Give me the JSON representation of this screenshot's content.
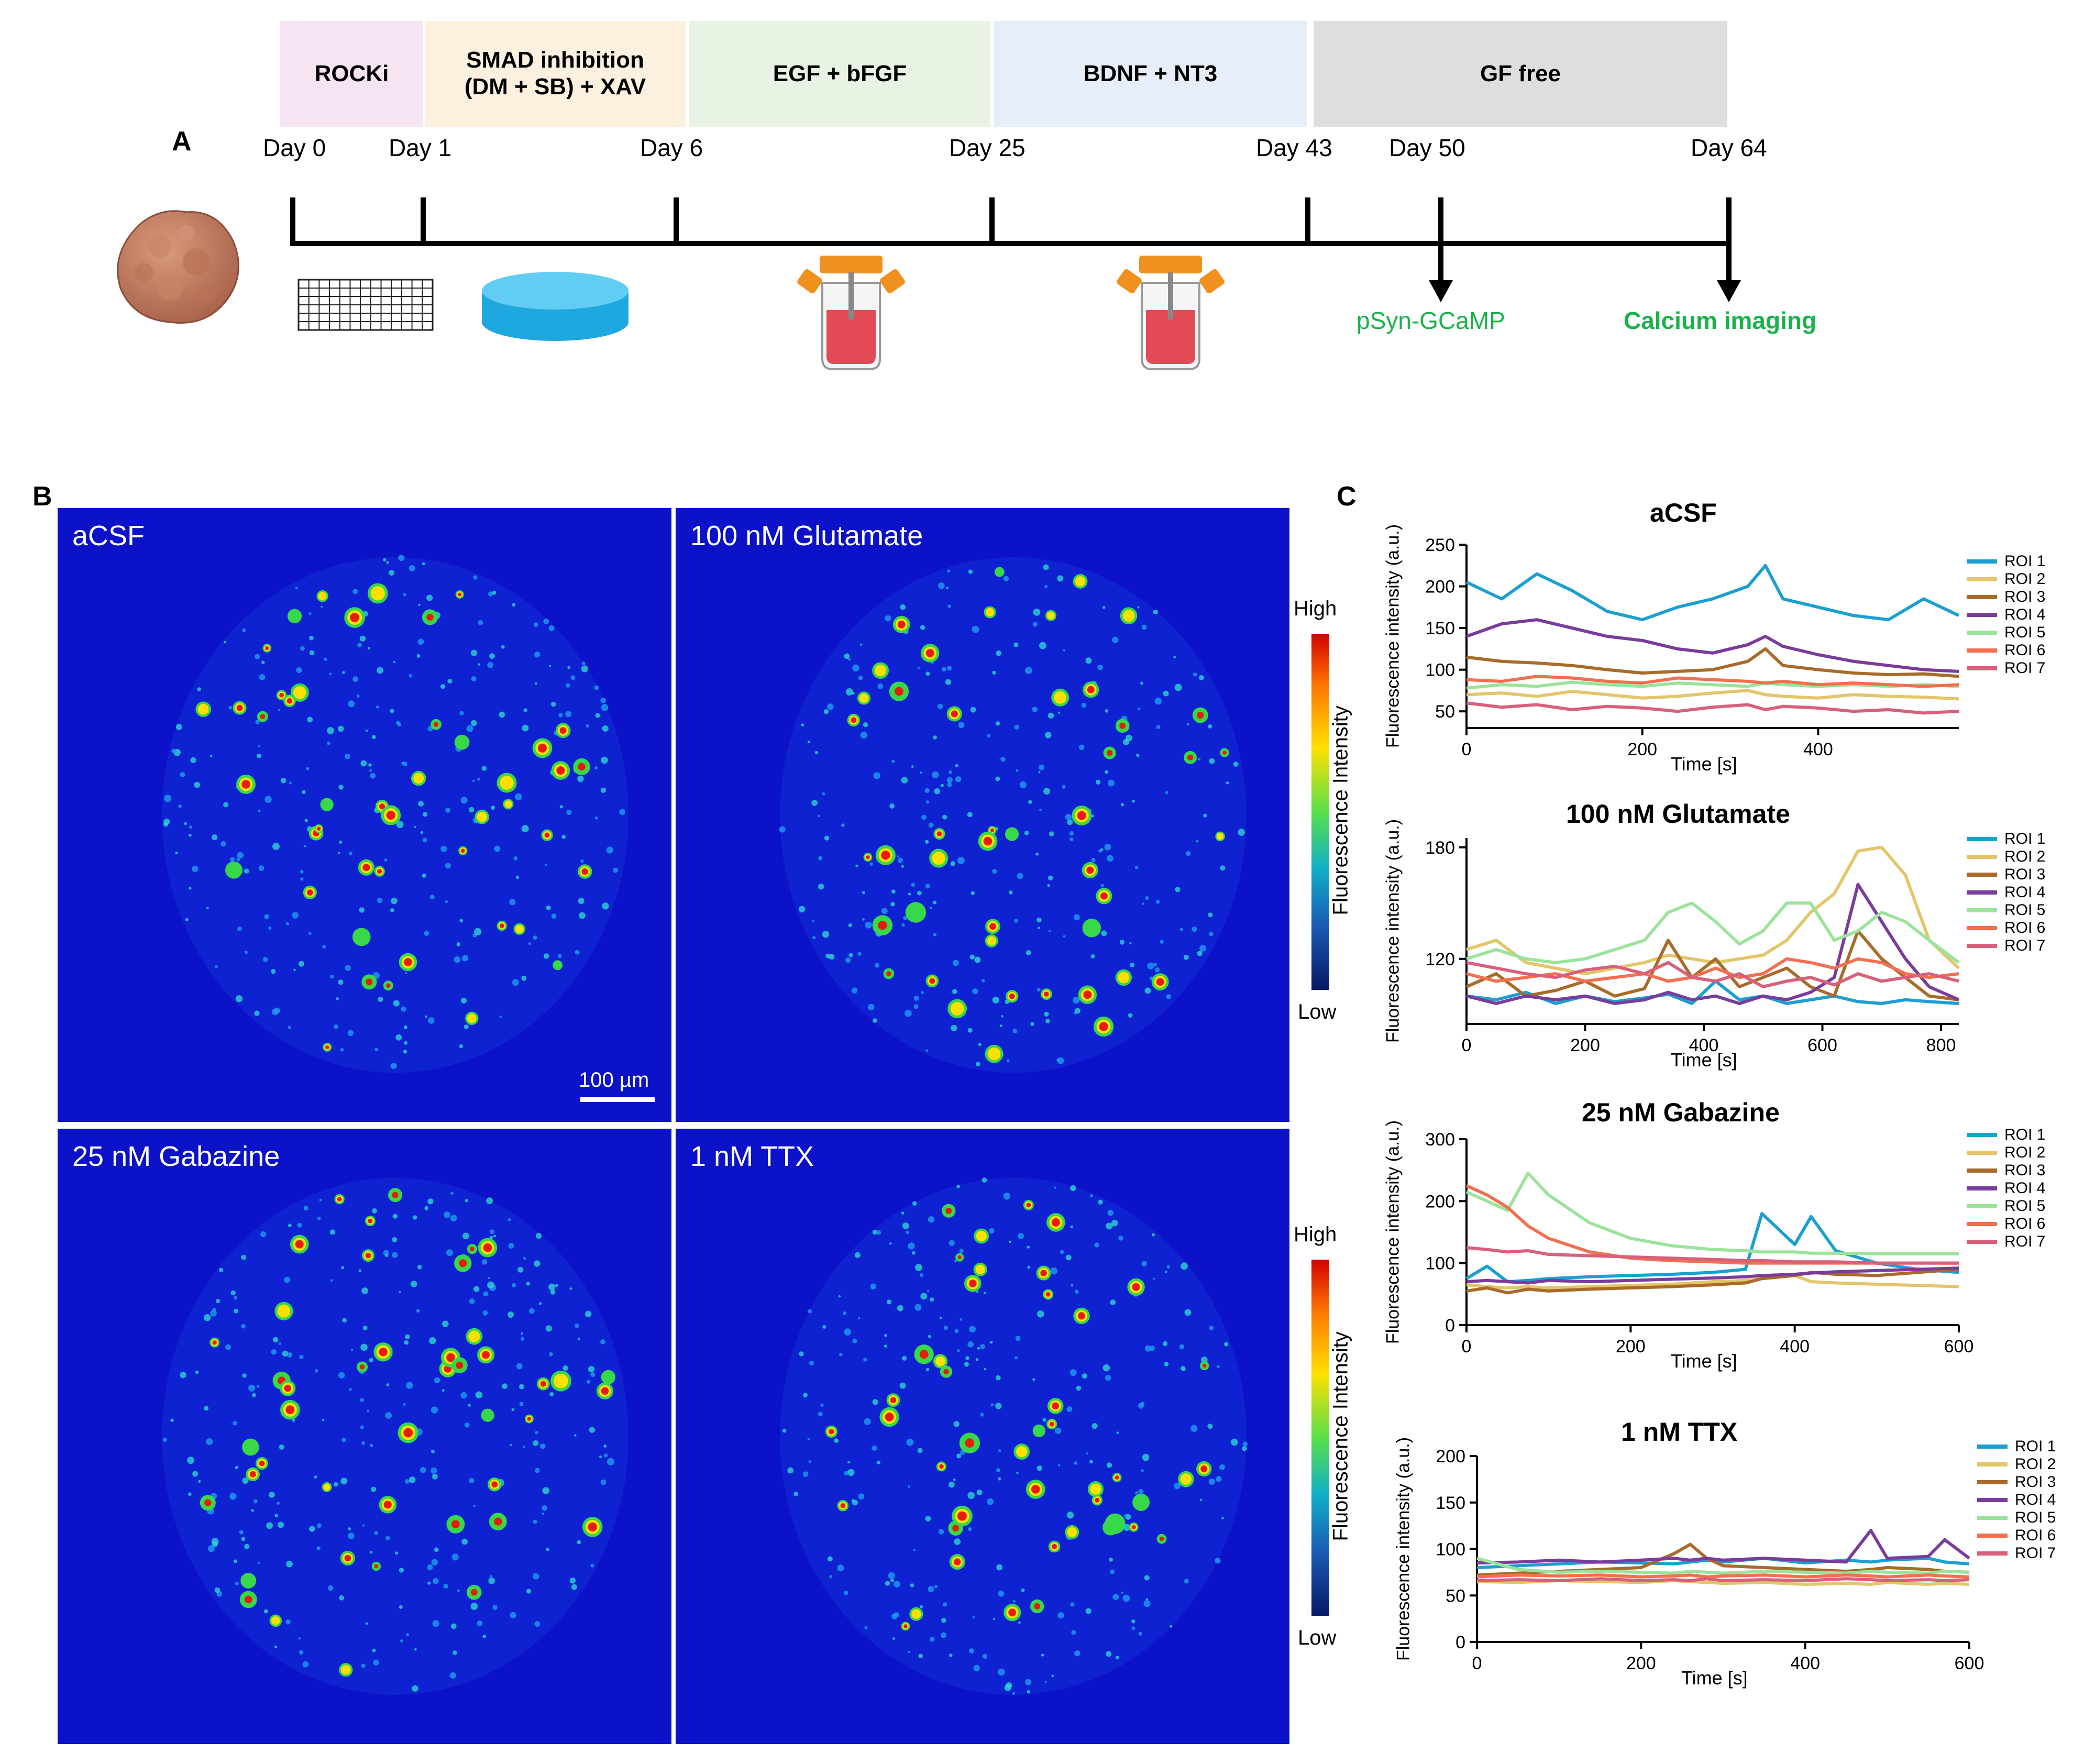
{
  "panels": {
    "a": "A",
    "b": "B",
    "c": "C"
  },
  "timeline": {
    "stages": [
      {
        "label": "ROCKi",
        "color": "#f7e4f3"
      },
      {
        "label": "SMAD inhibition\n(DM + SB) + XAV",
        "color": "#fbf1de"
      },
      {
        "label": "EGF + bFGF",
        "color": "#e9f3e4"
      },
      {
        "label": "BDNF + NT3",
        "color": "#e6eef9"
      },
      {
        "label": "GF free",
        "color": "#dedede"
      }
    ],
    "days": [
      "Day 0",
      "Day 1",
      "Day 6",
      "Day 25",
      "Day 43",
      "Day 50",
      "Day 64"
    ],
    "event_1": "pSyn-GCaMP",
    "event_2": "Calcium imaging",
    "event_color": "#1ab24b"
  },
  "microscopy": {
    "conditions": [
      "aCSF",
      "100 nM Glutamate",
      "25 nM Gabazine",
      "1 nM TTX"
    ],
    "scale_bar": "100 µm",
    "colorbar": {
      "high": "High",
      "low": "Low",
      "title": "Fluorescence Intensity"
    }
  },
  "series_colors": {
    "ROI 1": "#1b9fd0",
    "ROI 2": "#e3c56a",
    "ROI 3": "#a86b2a",
    "ROI 4": "#7a3c9c",
    "ROI 5": "#9be39b",
    "ROI 6": "#f36f4f",
    "ROI 7": "#d9607a"
  },
  "chart_data": [
    {
      "type": "line",
      "title": "aCSF",
      "xlabel": "Time [s]",
      "ylabel": "Fluorescence intensity (a.u.)",
      "xlim": [
        0,
        560
      ],
      "ylim": [
        30,
        250
      ],
      "xticks": [
        0,
        200,
        400
      ],
      "yticks": [
        50,
        100,
        150,
        200,
        250
      ],
      "x": [
        0,
        40,
        80,
        120,
        160,
        200,
        240,
        280,
        320,
        340,
        360,
        400,
        440,
        480,
        520,
        560
      ],
      "series": [
        {
          "name": "ROI 1",
          "values": [
            205,
            185,
            215,
            195,
            170,
            160,
            175,
            185,
            200,
            225,
            185,
            175,
            165,
            160,
            185,
            165
          ]
        },
        {
          "name": "ROI 2",
          "values": [
            70,
            72,
            68,
            74,
            70,
            66,
            68,
            72,
            75,
            70,
            68,
            66,
            70,
            68,
            67,
            65
          ]
        },
        {
          "name": "ROI 3",
          "values": [
            115,
            110,
            108,
            105,
            100,
            96,
            98,
            100,
            110,
            125,
            105,
            100,
            96,
            94,
            95,
            92
          ]
        },
        {
          "name": "ROI 4",
          "values": [
            140,
            155,
            160,
            150,
            140,
            135,
            125,
            120,
            130,
            140,
            128,
            118,
            110,
            105,
            100,
            98
          ]
        },
        {
          "name": "ROI 5",
          "values": [
            78,
            82,
            80,
            85,
            82,
            80,
            84,
            82,
            80,
            84,
            82,
            80,
            82,
            80,
            82,
            80
          ]
        },
        {
          "name": "ROI 6",
          "values": [
            88,
            86,
            92,
            90,
            86,
            84,
            90,
            88,
            86,
            84,
            86,
            82,
            84,
            82,
            80,
            82
          ]
        },
        {
          "name": "ROI 7",
          "values": [
            60,
            55,
            58,
            52,
            56,
            54,
            50,
            55,
            58,
            52,
            56,
            54,
            50,
            52,
            48,
            50
          ]
        }
      ],
      "legend": [
        "ROI 1",
        "ROI 2",
        "ROI 3",
        "ROI 4",
        "ROI 5",
        "ROI 6",
        "ROI 7"
      ]
    },
    {
      "type": "line",
      "title": "100 nM Glutamate",
      "xlabel": "Time [s]",
      "ylabel": "Fluorescence intensity (a.u.)",
      "xlim": [
        0,
        830
      ],
      "ylim": [
        85,
        185
      ],
      "xticks": [
        0,
        200,
        400,
        600,
        800
      ],
      "yticks": [
        120,
        180
      ],
      "x": [
        0,
        50,
        100,
        150,
        200,
        250,
        300,
        340,
        380,
        420,
        460,
        500,
        540,
        580,
        620,
        660,
        700,
        740,
        780,
        830
      ],
      "series": [
        {
          "name": "ROI 1",
          "values": [
            100,
            98,
            102,
            96,
            100,
            97,
            99,
            101,
            96,
            108,
            98,
            100,
            96,
            98,
            100,
            97,
            96,
            98,
            97,
            96
          ]
        },
        {
          "name": "ROI 2",
          "values": [
            125,
            130,
            118,
            115,
            112,
            115,
            118,
            122,
            120,
            118,
            120,
            122,
            130,
            145,
            155,
            178,
            180,
            165,
            130,
            115
          ]
        },
        {
          "name": "ROI 3",
          "values": [
            105,
            112,
            100,
            103,
            108,
            100,
            104,
            130,
            110,
            120,
            105,
            110,
            115,
            105,
            100,
            135,
            120,
            110,
            100,
            98
          ]
        },
        {
          "name": "ROI 4",
          "values": [
            100,
            96,
            100,
            98,
            100,
            96,
            98,
            102,
            98,
            100,
            96,
            100,
            98,
            102,
            110,
            160,
            140,
            120,
            105,
            98
          ]
        },
        {
          "name": "ROI 5",
          "values": [
            120,
            125,
            120,
            118,
            120,
            125,
            130,
            145,
            150,
            140,
            128,
            135,
            150,
            150,
            130,
            135,
            145,
            140,
            130,
            118
          ]
        },
        {
          "name": "ROI 6",
          "values": [
            112,
            108,
            110,
            112,
            108,
            110,
            112,
            108,
            110,
            115,
            110,
            112,
            120,
            118,
            115,
            120,
            118,
            112,
            110,
            112
          ]
        },
        {
          "name": "ROI 7",
          "values": [
            118,
            115,
            112,
            110,
            114,
            116,
            112,
            118,
            110,
            108,
            112,
            105,
            108,
            110,
            106,
            112,
            108,
            110,
            112,
            108
          ]
        }
      ],
      "legend": [
        "ROI 1",
        "ROI 2",
        "ROI 3",
        "ROI 4",
        "ROI 5",
        "ROI 6",
        "ROI 7"
      ]
    },
    {
      "type": "line",
      "title": "25 nM Gabazine",
      "xlabel": "Time [s]",
      "ylabel": "Fluorescence intensity (a.u.)",
      "xlim": [
        0,
        600
      ],
      "ylim": [
        0,
        300
      ],
      "xticks": [
        0,
        200,
        400,
        600
      ],
      "yticks": [
        0,
        100,
        200,
        300
      ],
      "x": [
        0,
        25,
        50,
        75,
        100,
        150,
        200,
        250,
        300,
        340,
        360,
        400,
        420,
        450,
        500,
        550,
        600
      ],
      "series": [
        {
          "name": "ROI 1",
          "values": [
            75,
            95,
            70,
            72,
            75,
            78,
            80,
            82,
            85,
            90,
            180,
            130,
            175,
            120,
            100,
            90,
            85
          ]
        },
        {
          "name": "ROI 2",
          "values": [
            65,
            62,
            60,
            62,
            60,
            62,
            64,
            66,
            70,
            72,
            75,
            80,
            70,
            68,
            66,
            64,
            62
          ]
        },
        {
          "name": "ROI 3",
          "values": [
            55,
            60,
            52,
            58,
            55,
            58,
            60,
            62,
            65,
            68,
            75,
            80,
            85,
            82,
            80,
            85,
            90
          ]
        },
        {
          "name": "ROI 4",
          "values": [
            70,
            72,
            70,
            68,
            72,
            70,
            72,
            74,
            76,
            78,
            80,
            82,
            84,
            86,
            88,
            90,
            92
          ]
        },
        {
          "name": "ROI 5",
          "values": [
            215,
            200,
            185,
            245,
            210,
            165,
            140,
            128,
            122,
            120,
            118,
            118,
            116,
            116,
            115,
            115,
            115
          ]
        },
        {
          "name": "ROI 6",
          "values": [
            225,
            210,
            190,
            160,
            140,
            118,
            108,
            104,
            102,
            100,
            100,
            100,
            100,
            100,
            100,
            100,
            100
          ]
        },
        {
          "name": "ROI 7",
          "values": [
            125,
            122,
            118,
            120,
            114,
            112,
            110,
            108,
            106,
            104,
            104,
            102,
            102,
            102,
            100,
            100,
            100
          ]
        }
      ],
      "legend": [
        "ROI 1",
        "ROI 2",
        "ROI 3",
        "ROI 4",
        "ROI 5",
        "ROI 6",
        "ROI 7"
      ]
    },
    {
      "type": "line",
      "title": "1 nM TTX",
      "xlabel": "Time [s]",
      "ylabel": "Fluorescence intensity (a.u.)",
      "xlim": [
        0,
        600
      ],
      "ylim": [
        0,
        200
      ],
      "xticks": [
        0,
        200,
        400,
        600
      ],
      "yticks": [
        0,
        50,
        100,
        150,
        200
      ],
      "x": [
        0,
        50,
        100,
        150,
        200,
        240,
        260,
        280,
        300,
        350,
        400,
        450,
        480,
        500,
        550,
        570,
        600
      ],
      "series": [
        {
          "name": "ROI 1",
          "values": [
            80,
            82,
            84,
            86,
            85,
            84,
            86,
            88,
            86,
            90,
            85,
            88,
            86,
            88,
            90,
            86,
            84
          ]
        },
        {
          "name": "ROI 2",
          "values": [
            65,
            64,
            66,
            65,
            64,
            66,
            65,
            64,
            63,
            64,
            62,
            63,
            62,
            64,
            62,
            63,
            62
          ]
        },
        {
          "name": "ROI 3",
          "values": [
            72,
            74,
            76,
            78,
            80,
            95,
            105,
            90,
            82,
            80,
            78,
            76,
            78,
            80,
            78,
            76,
            75
          ]
        },
        {
          "name": "ROI 4",
          "values": [
            85,
            86,
            88,
            86,
            88,
            90,
            88,
            90,
            88,
            90,
            88,
            86,
            120,
            90,
            92,
            110,
            90
          ]
        },
        {
          "name": "ROI 5",
          "values": [
            90,
            78,
            75,
            76,
            75,
            74,
            76,
            75,
            74,
            76,
            75,
            74,
            76,
            75,
            74,
            76,
            75
          ]
        },
        {
          "name": "ROI 6",
          "values": [
            70,
            72,
            71,
            72,
            70,
            71,
            72,
            70,
            71,
            72,
            70,
            72,
            71,
            70,
            72,
            71,
            70
          ]
        },
        {
          "name": "ROI 7",
          "values": [
            66,
            67,
            66,
            68,
            66,
            67,
            66,
            68,
            66,
            67,
            66,
            68,
            67,
            66,
            67,
            66,
            67
          ]
        }
      ],
      "legend": [
        "ROI 1",
        "ROI 2",
        "ROI 3",
        "ROI 4",
        "ROI 5",
        "ROI 6",
        "ROI 7"
      ]
    }
  ]
}
